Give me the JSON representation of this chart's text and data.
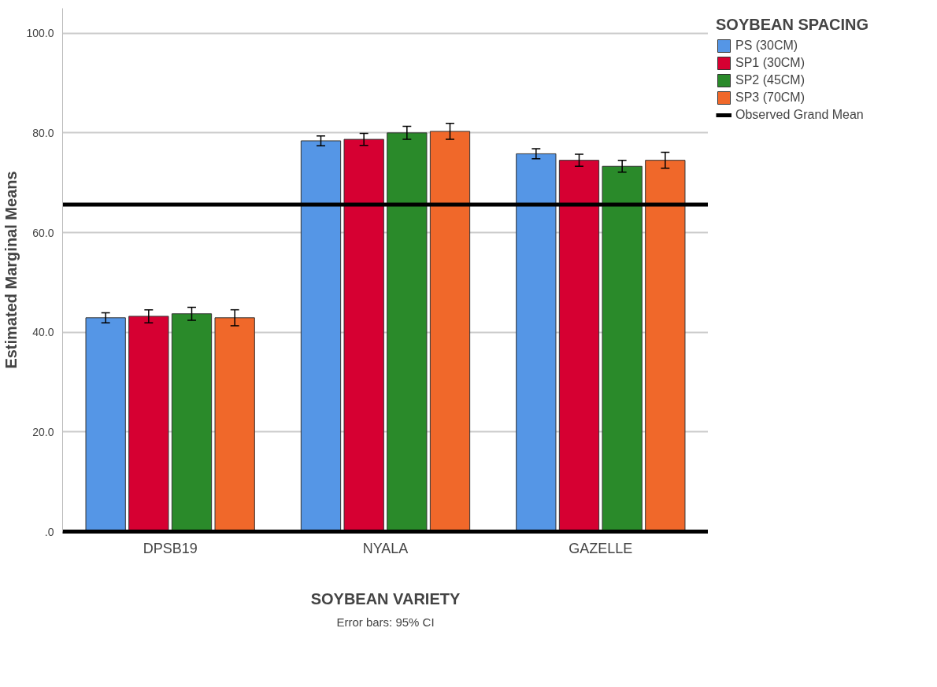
{
  "chart_data": {
    "type": "bar",
    "xlabel": "SOYBEAN VARIETY",
    "ylabel": "Estimated Marginal Means",
    "legend_title": "SOYBEAN SPACING",
    "categories": [
      "DPSB19",
      "NYALA",
      "GAZELLE"
    ],
    "series": [
      {
        "name": "PS (30CM)",
        "color": "#5596e6",
        "values": [
          42.9,
          78.4,
          75.8
        ],
        "errors": [
          1.0,
          1.0,
          1.0
        ]
      },
      {
        "name": "SP1 (30CM)",
        "color": "#d60032",
        "values": [
          43.2,
          78.7,
          74.5
        ],
        "errors": [
          1.3,
          1.2,
          1.2
        ]
      },
      {
        "name": "SP2 (45CM)",
        "color": "#2a8a2a",
        "values": [
          43.7,
          80.0,
          73.3
        ],
        "errors": [
          1.3,
          1.3,
          1.2
        ]
      },
      {
        "name": "SP3 (70CM)",
        "color": "#f0682a",
        "values": [
          42.9,
          80.3,
          74.5
        ],
        "errors": [
          1.6,
          1.6,
          1.6
        ]
      }
    ],
    "ylim": [
      0,
      105
    ],
    "yticks": [
      {
        "value": 0,
        "label": ".0"
      },
      {
        "value": 20,
        "label": "20.0"
      },
      {
        "value": 40,
        "label": "40.0"
      },
      {
        "value": 60,
        "label": "60.0"
      },
      {
        "value": 80,
        "label": "80.0"
      },
      {
        "value": 100,
        "label": "100.0"
      }
    ],
    "ref_lines": [
      {
        "axis": "y",
        "value": 65.6,
        "label": "Observed Grand Mean",
        "color": "#000000"
      }
    ],
    "grid": "y",
    "legend": "right",
    "annotations": [
      "Error bars: 95% CI"
    ]
  }
}
